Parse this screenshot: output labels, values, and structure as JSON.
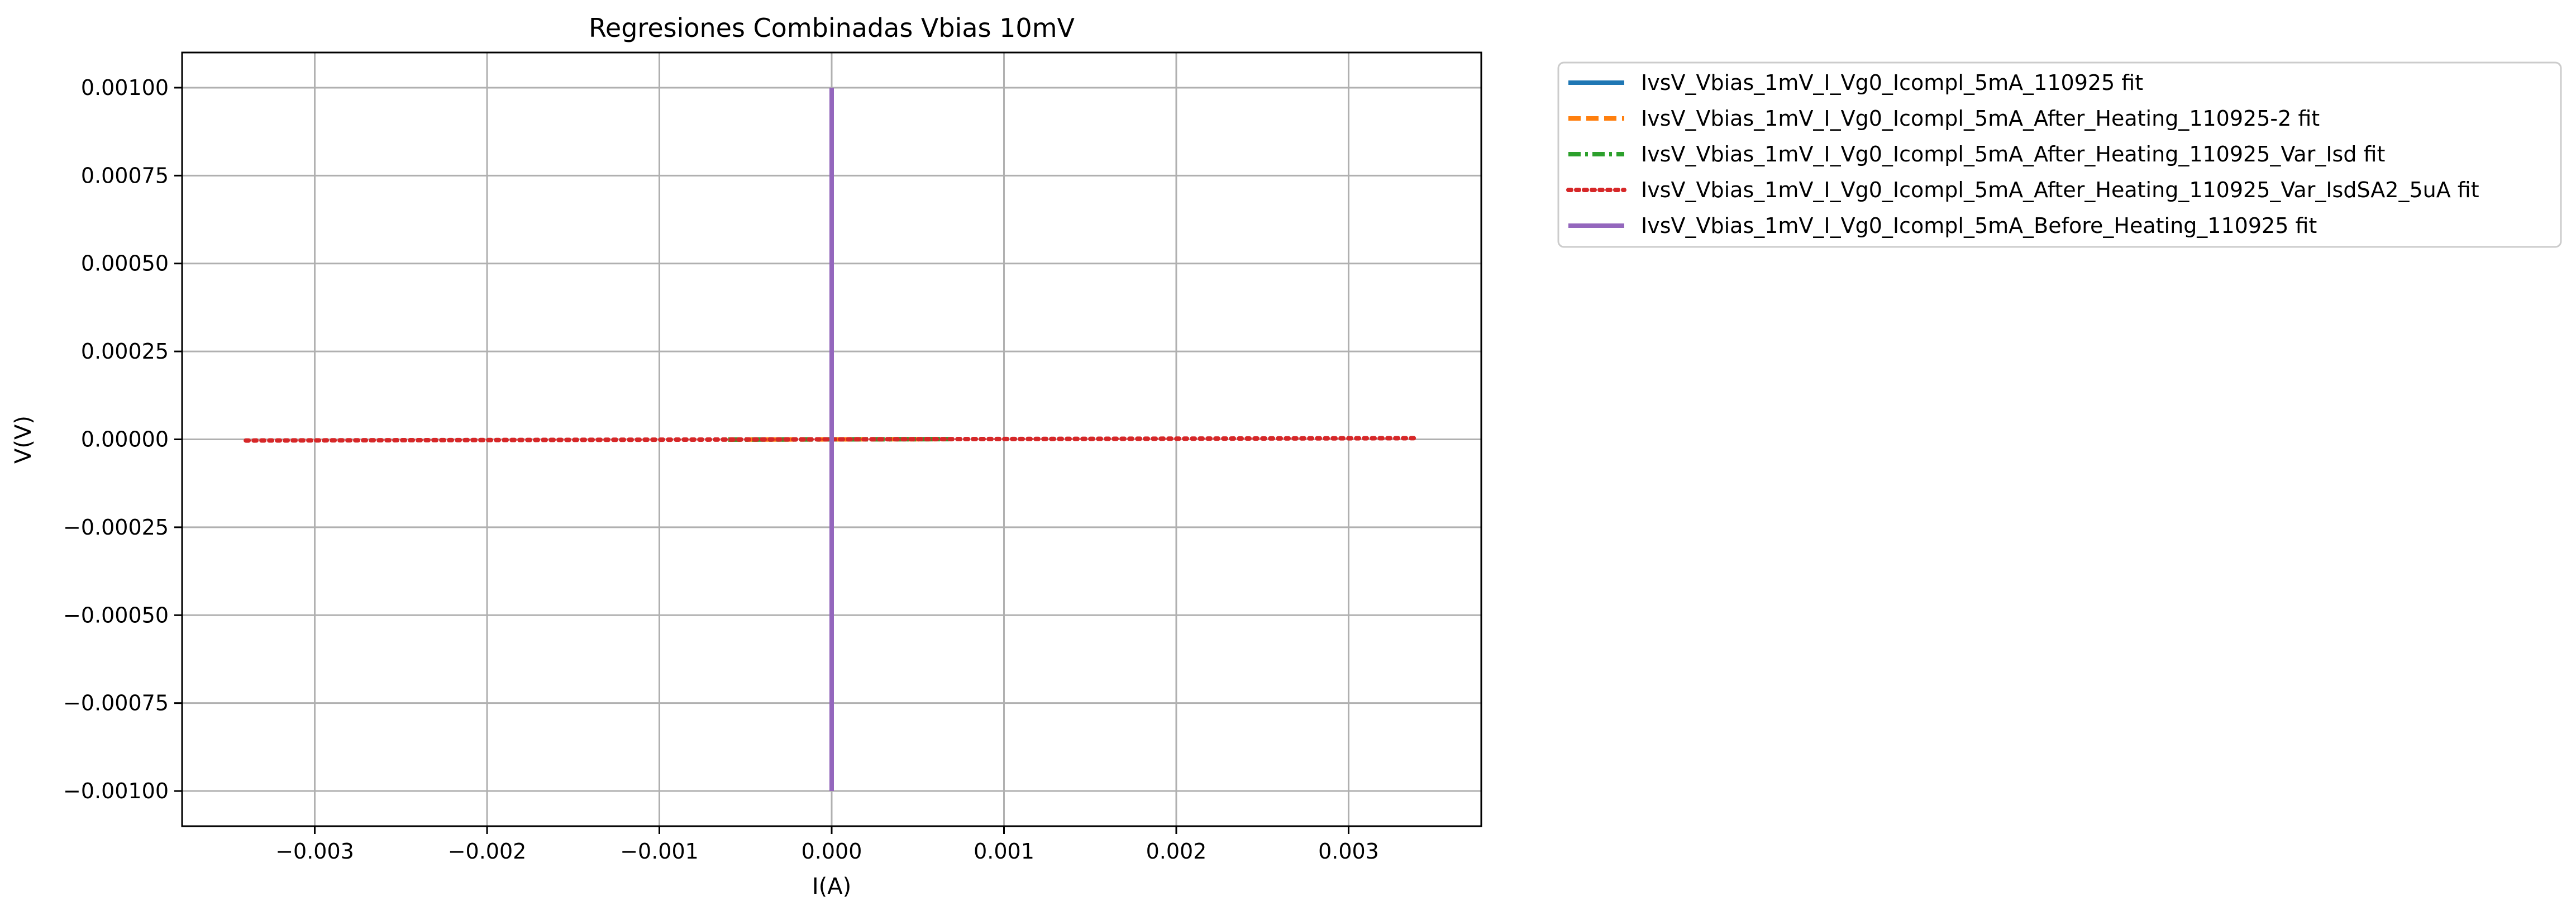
{
  "chart_data": {
    "type": "line",
    "title": "Regresiones Combinadas Vbias 10mV",
    "xlabel": "I(A)",
    "ylabel": "V(V)",
    "xlim": [
      -0.00377,
      0.00377
    ],
    "ylim": [
      -0.0011,
      0.0011
    ],
    "grid": true,
    "legend_placement": "outside upper right",
    "xticks": [
      -0.003,
      -0.002,
      -0.001,
      0.0,
      0.001,
      0.002,
      0.003
    ],
    "xtick_labels": [
      "−0.003",
      "−0.002",
      "−0.001",
      "0.000",
      "0.001",
      "0.002",
      "0.003"
    ],
    "yticks": [
      0.001,
      0.00075,
      0.0005,
      0.00025,
      0.0,
      -0.00025,
      -0.0005,
      -0.00075,
      -0.001
    ],
    "ytick_labels": [
      "0.00100",
      "0.00075",
      "0.00050",
      "0.00025",
      "0.00000",
      "−0.00025",
      "−0.00050",
      "−0.00075",
      "−0.00100"
    ],
    "series": [
      {
        "name": "IvsV_Vbias_1mV_I_Vg0_Icompl_5mA_110925 fit",
        "color": "#1f77b4",
        "dash": "solid",
        "x": [
          0.0,
          0.0
        ],
        "y": [
          -0.001,
          0.001
        ]
      },
      {
        "name": "IvsV_Vbias_1mV_I_Vg0_Icompl_5mA_After_Heating_110925-2 fit",
        "color": "#ff7f0e",
        "dash": "dashed",
        "x": [
          -0.0006,
          0.00065
        ],
        "y": [
          -6e-07,
          6e-07
        ]
      },
      {
        "name": "IvsV_Vbias_1mV_I_Vg0_Icompl_5mA_After_Heating_110925_Var_Isd fit",
        "color": "#2ca02c",
        "dash": "dashdot",
        "x": [
          -0.0006,
          0.00068
        ],
        "y": [
          -6e-07,
          6e-07
        ]
      },
      {
        "name": "IvsV_Vbias_1mV_I_Vg0_Icompl_5mA_After_Heating_110925_Var_IsdSA2_5uA fit",
        "color": "#d62728",
        "dash": "dotted",
        "x": [
          -0.0034,
          0.0034
        ],
        "y": [
          -3.4e-06,
          3.4e-06
        ]
      },
      {
        "name": "IvsV_Vbias_1mV_I_Vg0_Icompl_5mA_Before_Heating_110925 fit",
        "color": "#9467bd",
        "dash": "solid",
        "x": [
          0.0,
          0.0
        ],
        "y": [
          -0.001,
          0.001
        ]
      }
    ]
  }
}
